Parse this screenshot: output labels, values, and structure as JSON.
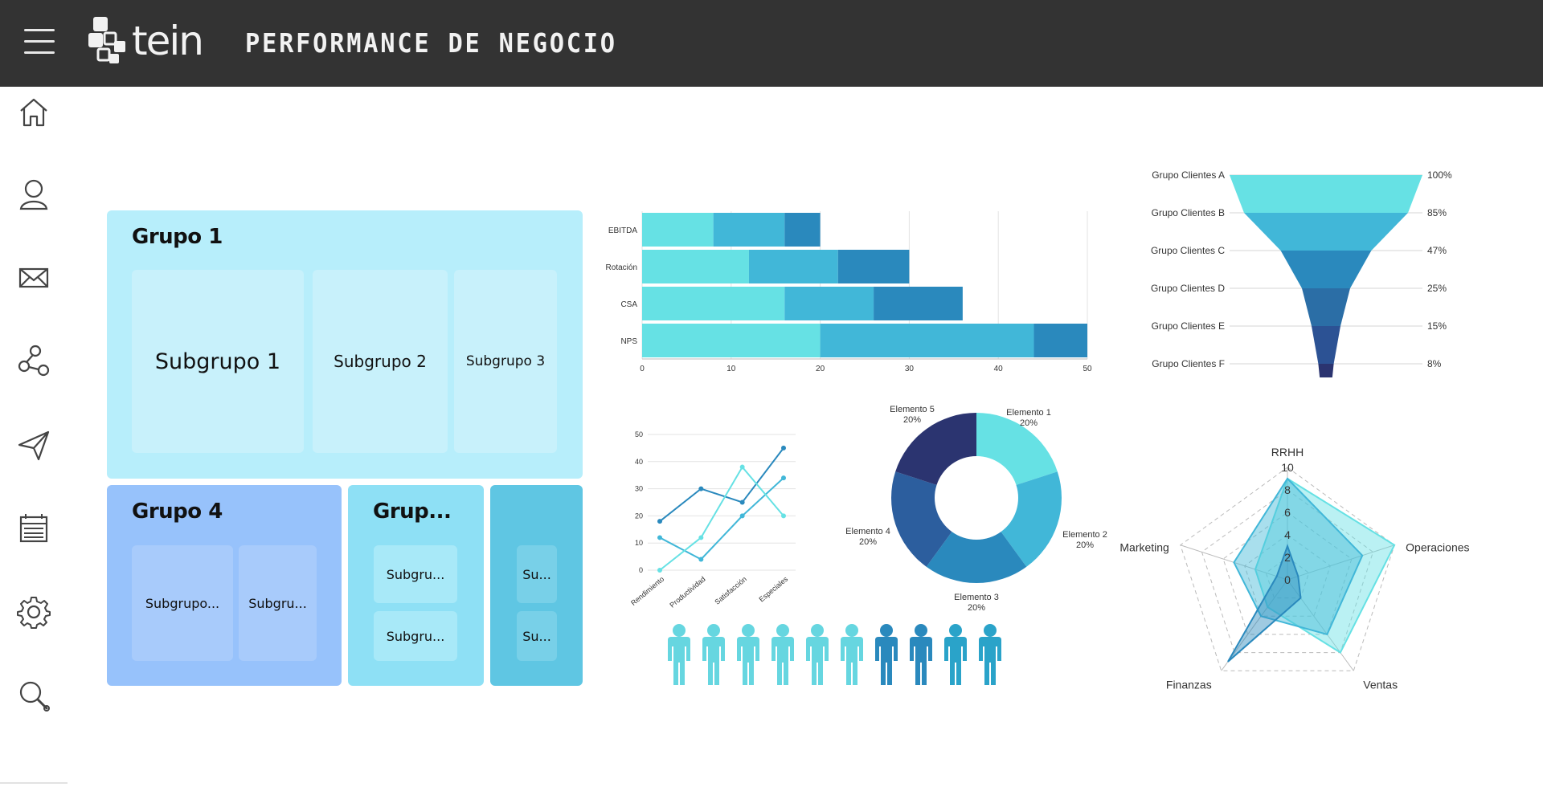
{
  "header": {
    "logo_text": "tein",
    "title": "PERFORMANCE DE NEGOCIO"
  },
  "sidebar": {
    "items": [
      {
        "icon": "home-icon"
      },
      {
        "icon": "user-icon"
      },
      {
        "icon": "mail-icon"
      },
      {
        "icon": "share-icon"
      },
      {
        "icon": "send-icon"
      },
      {
        "icon": "calendar-icon"
      },
      {
        "icon": "gear-icon"
      },
      {
        "icon": "search-icon"
      }
    ]
  },
  "treemap": {
    "groups": [
      {
        "title": "Grupo 1",
        "color": "#b7eefb",
        "subgroups": [
          "Subgrupo 1",
          "Subgrupo 2",
          "Subgrupo 3"
        ]
      },
      {
        "title": "Grupo 4",
        "color": "#97c2fb",
        "subgroups": [
          "Subgrupo...",
          "Subgru..."
        ]
      },
      {
        "title": "Grup...",
        "color": "#8ee0f5",
        "subgroups": [
          "Subgru...",
          "Subgru..."
        ]
      },
      {
        "title": "",
        "color": "#5fc6e3",
        "subgroups": [
          "Su...",
          "Su..."
        ]
      }
    ]
  },
  "chart_data": [
    {
      "type": "bar",
      "orientation": "horizontal",
      "stacked": true,
      "categories": [
        "EBITDA",
        "Rotación",
        "CSA",
        "NPS"
      ],
      "series": [
        {
          "values": [
            8,
            12,
            16,
            20
          ],
          "color": "#66e1e4"
        },
        {
          "values": [
            8,
            10,
            10,
            24
          ],
          "color": "#41b7d8"
        },
        {
          "values": [
            4,
            8,
            10,
            6
          ],
          "color": "#2a89bd"
        }
      ],
      "xlim": [
        0,
        50
      ],
      "xticks": [
        0,
        10,
        20,
        30,
        40,
        50
      ],
      "grid": true
    },
    {
      "type": "funnel",
      "categories": [
        "Grupo Clientes A",
        "Grupo Clientes B",
        "Grupo Clientes C",
        "Grupo Clientes D",
        "Grupo Clientes E",
        "Grupo Clientes F"
      ],
      "values": [
        100,
        85,
        47,
        25,
        15,
        8
      ],
      "value_labels": [
        "100%",
        "85%",
        "47%",
        "25%",
        "15%",
        "8%"
      ],
      "colors": [
        "#66e1e4",
        "#41b7d8",
        "#2a89bd",
        "#2b6ea6",
        "#2c5294",
        "#2b3470"
      ]
    },
    {
      "type": "line",
      "categories": [
        "Rendimiento",
        "Productividad",
        "Satisfacción",
        "Especiales"
      ],
      "x_positions": [
        1,
        2,
        3,
        4,
        5
      ],
      "series": [
        {
          "values": [
            18,
            30,
            25,
            45
          ],
          "x_index": [
            0,
            1,
            2,
            3
          ],
          "color": "#2a89bd"
        },
        {
          "values": [
            12,
            4,
            20,
            34
          ],
          "x_index": [
            0,
            1,
            2,
            3
          ],
          "color": "#41b7d8"
        },
        {
          "values": [
            0,
            12,
            38,
            20
          ],
          "x_index": [
            0,
            1,
            2,
            3
          ],
          "color": "#66e1e4"
        }
      ],
      "ylim": [
        0,
        50
      ],
      "yticks": [
        0,
        10,
        20,
        30,
        40,
        50
      ],
      "grid": true
    },
    {
      "type": "pie",
      "donut": true,
      "labels": [
        "Elemento 1",
        "Elemento 2",
        "Elemento 3",
        "Elemento 4",
        "Elemento 5"
      ],
      "values": [
        20,
        20,
        20,
        20,
        20
      ],
      "value_labels": [
        "20%",
        "20%",
        "20%",
        "20%",
        "20%"
      ],
      "colors": [
        "#66e1e4",
        "#41b7d8",
        "#2a89bd",
        "#2c5e9e",
        "#2b3470"
      ]
    },
    {
      "type": "pictogram",
      "total": 10,
      "colors": [
        "#66d6e0",
        "#66d6e0",
        "#66d6e0",
        "#66d6e0",
        "#66d6e0",
        "#66d6e0",
        "#2a89bd",
        "#2a89bd",
        "#2aa3c9",
        "#2aa3c9"
      ]
    },
    {
      "type": "radar",
      "axes": [
        "RRHH",
        "Operaciones",
        "Ventas",
        "Finanzas",
        "Marketing"
      ],
      "rlim": [
        0,
        10
      ],
      "rticks": [
        "0",
        "2",
        "4",
        "6",
        "8",
        "10"
      ],
      "series": [
        {
          "values": [
            9,
            10,
            8,
            3,
            3
          ],
          "color": "#66e1e4"
        },
        {
          "values": [
            9,
            7,
            6,
            4,
            5
          ],
          "color": "#41b7d8"
        },
        {
          "values": [
            3,
            1,
            2,
            9,
            1
          ],
          "color": "#2a89bd"
        }
      ]
    }
  ]
}
